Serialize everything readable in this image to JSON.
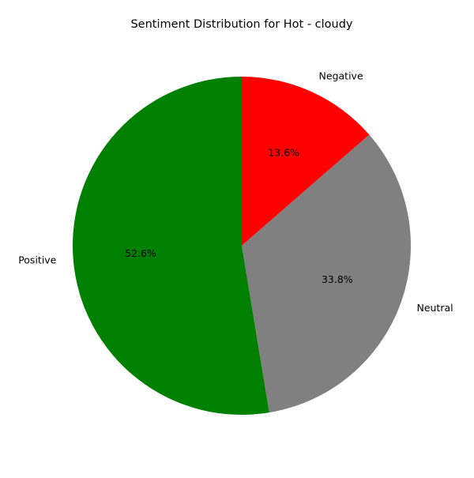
{
  "chart_data": {
    "type": "pie",
    "title": "Sentiment Distribution for Hot - cloudy",
    "start_angle_deg": 90,
    "direction": "clockwise",
    "slices": [
      {
        "label": "Negative",
        "value": 13.6,
        "pct_label": "13.6%",
        "color": "#ff0000"
      },
      {
        "label": "Neutral",
        "value": 33.8,
        "pct_label": "33.8%",
        "color": "#808080"
      },
      {
        "label": "Positive",
        "value": 52.6,
        "pct_label": "52.6%",
        "color": "#008000"
      }
    ]
  }
}
